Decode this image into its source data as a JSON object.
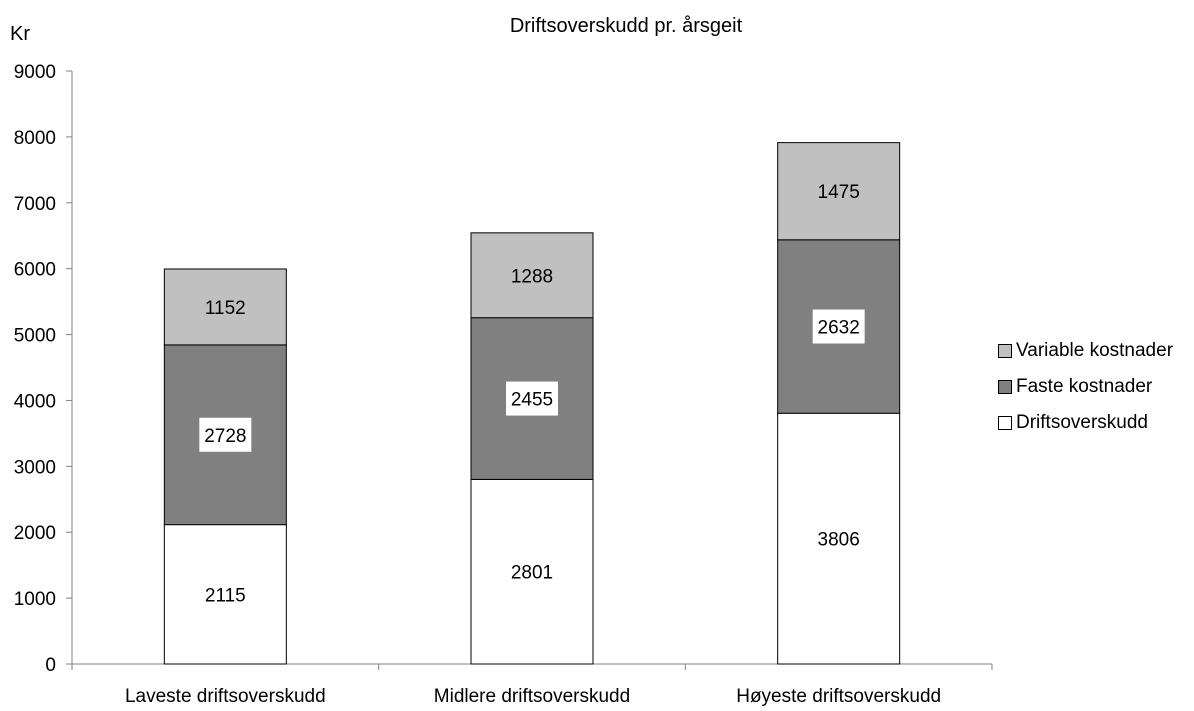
{
  "chart_data": {
    "type": "bar",
    "stacked": true,
    "title": "Driftsoverskudd pr. årsgeit",
    "ylabel": "Kr",
    "xlabel": "",
    "ylim": [
      0,
      9000
    ],
    "yticks": [
      "0",
      "1000",
      "2000",
      "3000",
      "4000",
      "5000",
      "6000",
      "7000",
      "8000",
      "9000"
    ],
    "categories": [
      "Laveste driftsoverskudd",
      "Midlere driftsoverskudd",
      "Høyeste driftsoverskudd"
    ],
    "series": [
      {
        "name": "Driftsoverskudd",
        "color": "#ffffff",
        "values": [
          2115,
          2801,
          3806
        ]
      },
      {
        "name": "Faste kostnader",
        "color": "#808080",
        "values": [
          2728,
          2455,
          2632
        ]
      },
      {
        "name": "Variable kostnader",
        "color": "#c0c0c0",
        "values": [
          1152,
          1288,
          1475
        ]
      }
    ],
    "legend_position": "right",
    "grid": false
  }
}
